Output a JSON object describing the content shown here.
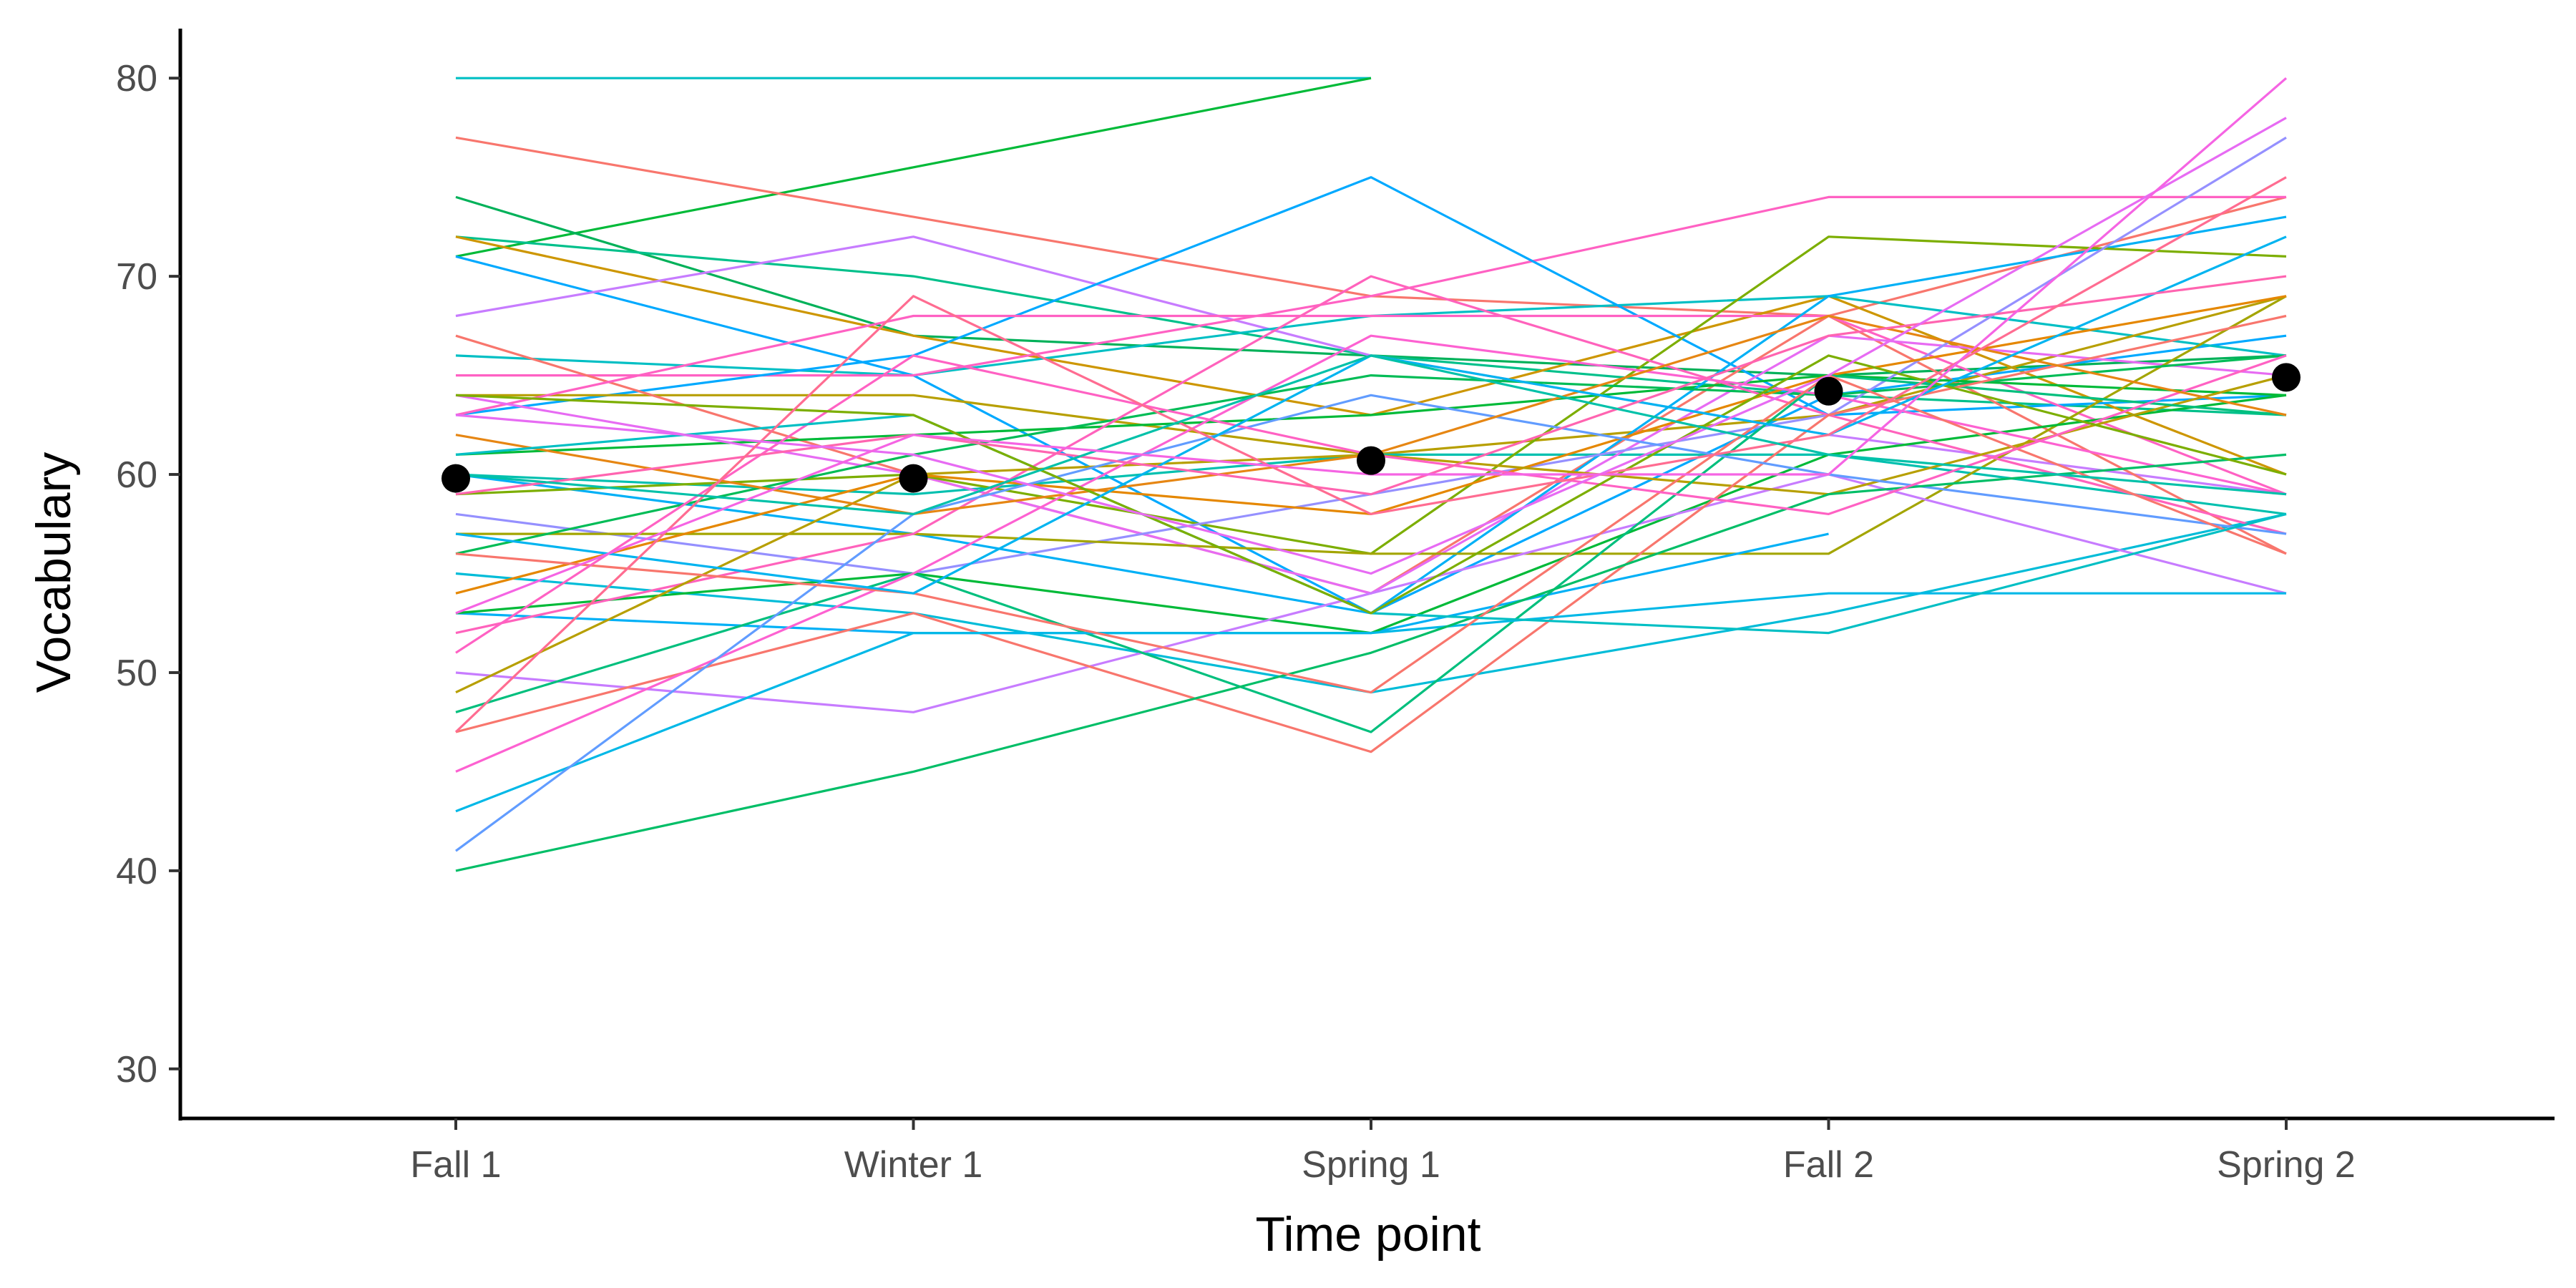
{
  "chart_data": {
    "type": "line",
    "title": "",
    "xlabel": "Time point",
    "ylabel": "Vocabulary",
    "categories": [
      "Fall 1",
      "Winter 1",
      "Spring 1",
      "Fall 2",
      "Spring 2"
    ],
    "ylim": [
      27.5,
      82.5
    ],
    "yticks": [
      30,
      40,
      50,
      60,
      70,
      80
    ],
    "grid": false,
    "legend": "none",
    "mean_series": {
      "values": [
        59.8,
        59.8,
        60.7,
        64.2,
        64.9
      ],
      "color": "#000000"
    },
    "individual_series": [
      {
        "values": [
          80,
          80,
          80,
          null,
          null
        ],
        "color": "#00BFC4"
      },
      {
        "values": [
          71,
          75.5,
          80,
          null,
          null
        ],
        "color": "#00BA38"
      },
      {
        "values": [
          77,
          73,
          69,
          68,
          74
        ],
        "color": "#F8766D"
      },
      {
        "values": [
          74,
          67,
          66,
          65,
          66
        ],
        "color": "#00B159"
      },
      {
        "values": [
          72,
          70,
          66,
          64,
          63
        ],
        "color": "#00C08B"
      },
      {
        "values": [
          72,
          67,
          63,
          69,
          60
        ],
        "color": "#CD9600"
      },
      {
        "values": [
          71,
          65,
          53,
          64,
          67
        ],
        "color": "#00A9FF"
      },
      {
        "values": [
          68,
          72,
          66,
          62,
          59
        ],
        "color": "#C77CFF"
      },
      {
        "values": [
          66,
          65,
          68,
          69,
          66
        ],
        "color": "#00BFC4"
      },
      {
        "values": [
          65,
          65,
          69,
          74,
          74
        ],
        "color": "#FF61C3"
      },
      {
        "values": [
          63,
          66,
          75,
          63,
          64
        ],
        "color": "#00A9FF"
      },
      {
        "values": [
          64,
          64,
          61,
          63,
          69
        ],
        "color": "#B79F00"
      },
      {
        "values": [
          67,
          60,
          54,
          68,
          56
        ],
        "color": "#F8766D"
      },
      {
        "values": [
          63,
          68,
          68,
          68,
          59
        ],
        "color": "#FF61C3"
      },
      {
        "values": [
          61,
          62,
          63,
          65,
          64
        ],
        "color": "#00BA38"
      },
      {
        "values": [
          60,
          59,
          61,
          61,
          58
        ],
        "color": "#00C0AF"
      },
      {
        "values": [
          64,
          60,
          54,
          67,
          65
        ],
        "color": "#E76BF3"
      },
      {
        "values": [
          60,
          57,
          53,
          69,
          73
        ],
        "color": "#00B0F6"
      },
      {
        "values": [
          59,
          60,
          56,
          72,
          71
        ],
        "color": "#7CAE00"
      },
      {
        "values": [
          58,
          55,
          59,
          63,
          77
        ],
        "color": "#9590FF"
      },
      {
        "values": [
          57,
          57,
          56,
          56,
          69
        ],
        "color": "#A3A500"
      },
      {
        "values": [
          56,
          61,
          65,
          64,
          66
        ],
        "color": "#00BC56"
      },
      {
        "values": [
          55,
          53,
          49,
          53,
          58
        ],
        "color": "#00BCD8"
      },
      {
        "values": [
          54,
          60,
          58,
          65,
          69
        ],
        "color": "#E58700"
      },
      {
        "values": [
          53,
          52,
          52,
          57,
          null
        ],
        "color": "#00B0F6"
      },
      {
        "values": [
          53,
          55,
          52,
          61,
          64
        ],
        "color": "#00BA38"
      },
      {
        "values": [
          52,
          57,
          70,
          63,
          57
        ],
        "color": "#FF62BC"
      },
      {
        "values": [
          50,
          48,
          54,
          60,
          54
        ],
        "color": "#C77CFF"
      },
      {
        "values": [
          49,
          60,
          61,
          59,
          65
        ],
        "color": "#B79F00"
      },
      {
        "values": [
          48,
          55,
          47,
          65,
          63
        ],
        "color": "#00BF7D"
      },
      {
        "values": [
          47,
          53,
          46,
          63,
          68
        ],
        "color": "#F8766D"
      },
      {
        "values": [
          45,
          55,
          67,
          64,
          59
        ],
        "color": "#FD61D1"
      },
      {
        "values": [
          43,
          52,
          52,
          54,
          54
        ],
        "color": "#00B8E7"
      },
      {
        "values": [
          41,
          58,
          64,
          60,
          57
        ],
        "color": "#619CFF"
      },
      {
        "values": [
          40,
          45,
          51,
          59,
          61
        ],
        "color": "#00BE67"
      },
      {
        "values": [
          56,
          54,
          49,
          65,
          56
        ],
        "color": "#F8766D"
      },
      {
        "values": [
          51,
          66,
          61,
          58,
          66
        ],
        "color": "#FF61C3"
      },
      {
        "values": [
          62,
          58,
          61,
          68,
          63
        ],
        "color": "#E68613"
      },
      {
        "values": [
          61,
          63,
          53,
          52,
          58
        ],
        "color": "#00BFC4"
      },
      {
        "values": [
          64,
          63,
          53,
          66,
          60
        ],
        "color": "#7CAE00"
      },
      {
        "values": [
          57,
          54,
          66,
          62,
          72
        ],
        "color": "#00B4F0"
      },
      {
        "values": [
          59,
          62,
          59,
          67,
          70
        ],
        "color": "#FF64B0"
      },
      {
        "values": [
          47,
          69,
          58,
          62,
          75
        ],
        "color": "#FF6C91"
      },
      {
        "values": [
          63,
          61,
          55,
          65,
          78
        ],
        "color": "#E76BF3"
      },
      {
        "values": [
          60,
          58,
          66,
          61,
          59
        ],
        "color": "#00C1A9"
      },
      {
        "values": [
          53,
          62,
          60,
          60,
          80
        ],
        "color": "#F564E3"
      }
    ]
  }
}
